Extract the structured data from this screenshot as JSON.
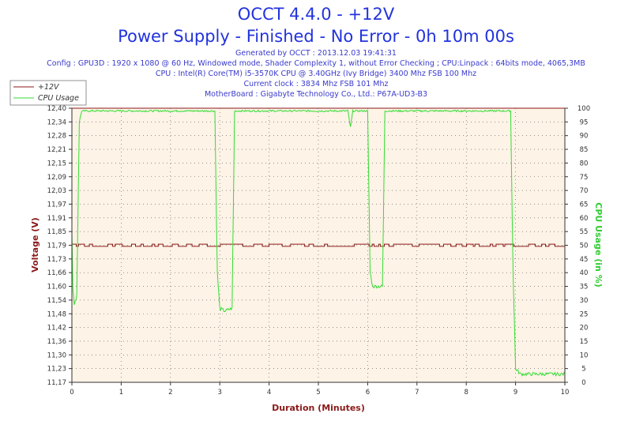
{
  "header": {
    "title": "OCCT 4.4.0 - +12V",
    "subtitle": "Power Supply - Finished - No Error - 0h 10m 00s",
    "generated": "Generated by OCCT : 2013.12.03 19:41:31",
    "config": "Config : GPU3D : 1920 x 1080 @ 60 Hz, Windowed mode, Shader Complexity 1, without Error Checking ; CPU:Linpack : 64bits mode, 4065,3MB",
    "cpu": "CPU : Intel(R) Core(TM) i5-3570K CPU @ 3.40GHz (Ivy Bridge) 3400 Mhz FSB 100 Mhz",
    "clock": "Current clock : 3834 Mhz FSB 101 Mhz",
    "motherboard": "MotherBoard : Gigabyte Technology Co., Ltd.: P67A-UD3-B3"
  },
  "colors": {
    "voltage": "#8b1a1a",
    "cpu": "#33dd33",
    "plot_bg": "#fdf3e6",
    "axis_label": "#8b1a1a",
    "right_label": "#33cc33"
  },
  "chart_data": {
    "type": "line",
    "xlabel": "Duration (Minutes)",
    "ylabel": "Voltage (V)",
    "y2label": "CPU Usage (in %)",
    "xlim": [
      0,
      10
    ],
    "ylim": [
      11.17,
      12.4
    ],
    "y2lim": [
      0,
      100
    ],
    "x_ticks": [
      "0",
      "1",
      "2",
      "3",
      "4",
      "5",
      "6",
      "7",
      "8",
      "9",
      "10"
    ],
    "y_ticks": [
      "11,17",
      "11,23",
      "11,30",
      "11,36",
      "11,42",
      "11,48",
      "11,54",
      "11,60",
      "11,66",
      "11,73",
      "11,79",
      "11,85",
      "11,91",
      "11,97",
      "12,03",
      "12,09",
      "12,15",
      "12,21",
      "12,28",
      "12,34",
      "12,40"
    ],
    "y2_ticks": [
      "0",
      "5",
      "10",
      "15",
      "20",
      "25",
      "30",
      "35",
      "40",
      "45",
      "50",
      "55",
      "60",
      "65",
      "70",
      "75",
      "80",
      "85",
      "90",
      "95",
      "100"
    ],
    "grid": true,
    "legend_position": "top-left",
    "series": [
      {
        "name": "+12V",
        "axis": "left",
        "base": 11.79,
        "dip": 11.78,
        "x": [
          0,
          10
        ]
      },
      {
        "name": "CPU Usage",
        "axis": "right",
        "x": [
          0,
          0.02,
          0.05,
          0.1,
          0.15,
          0.2,
          0.3,
          1.0,
          2.0,
          2.9,
          2.95,
          3.0,
          3.1,
          3.25,
          3.3,
          3.4,
          4.0,
          5.0,
          5.6,
          5.65,
          5.7,
          5.8,
          6.0,
          6.05,
          6.1,
          6.3,
          6.35,
          6.45,
          7.0,
          8.0,
          8.9,
          8.95,
          9.0,
          9.1,
          9.5,
          10.0
        ],
        "values": [
          55,
          35,
          28,
          32,
          95,
          99,
          99,
          99,
          99,
          99,
          40,
          27,
          26,
          27,
          99,
          99,
          99,
          99,
          99,
          93,
          99,
          99,
          99,
          40,
          35,
          35,
          99,
          99,
          99,
          99,
          99,
          40,
          5,
          3,
          3,
          3
        ]
      }
    ]
  }
}
